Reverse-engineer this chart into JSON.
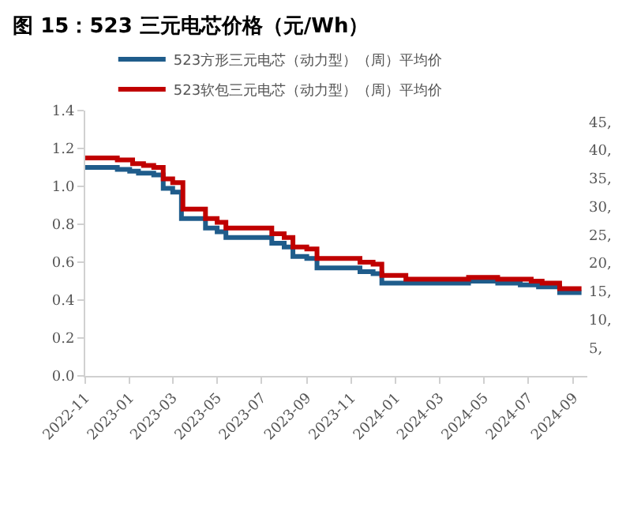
{
  "chart_data": {
    "type": "step",
    "title": "图 15：523 三元电芯价格（元/Wh）",
    "series": [
      {
        "name": "523方形三元电芯（动力型）（周）平均价",
        "color": "#1f5c8b",
        "x": [
          "2022-11-01",
          "2022-12-15",
          "2023-01-01",
          "2023-01-13",
          "2023-02-03",
          "2023-02-16",
          "2023-03-01",
          "2023-03-13",
          "2023-04-15",
          "2023-05-01",
          "2023-05-13",
          "2023-07-15",
          "2023-08-01",
          "2023-08-13",
          "2023-09-01",
          "2023-09-15",
          "2023-11-13",
          "2023-12-01",
          "2023-12-13",
          "2024-04-10",
          "2024-05-20",
          "2024-06-20",
          "2024-07-15",
          "2024-08-13",
          "2024-09-12"
        ],
        "values": [
          1.1,
          1.09,
          1.08,
          1.07,
          1.06,
          0.99,
          0.97,
          0.83,
          0.78,
          0.76,
          0.73,
          0.7,
          0.68,
          0.63,
          0.62,
          0.57,
          0.55,
          0.54,
          0.49,
          0.5,
          0.49,
          0.48,
          0.47,
          0.44,
          0.44
        ]
      },
      {
        "name": "523软包三元电芯（动力型）（周）平均价",
        "color": "#c00000",
        "x": [
          "2022-11-01",
          "2022-12-15",
          "2023-01-05",
          "2023-01-20",
          "2023-02-03",
          "2023-02-16",
          "2023-03-01",
          "2023-03-15",
          "2023-04-15",
          "2023-05-01",
          "2023-05-13",
          "2023-07-15",
          "2023-08-01",
          "2023-08-13",
          "2023-09-01",
          "2023-09-15",
          "2023-11-13",
          "2023-12-01",
          "2023-12-13",
          "2024-01-15",
          "2024-04-10",
          "2024-05-20",
          "2024-07-05",
          "2024-07-20",
          "2024-08-13",
          "2024-09-12"
        ],
        "values": [
          1.15,
          1.14,
          1.12,
          1.11,
          1.1,
          1.04,
          1.02,
          0.88,
          0.83,
          0.81,
          0.78,
          0.75,
          0.73,
          0.68,
          0.67,
          0.62,
          0.6,
          0.59,
          0.53,
          0.51,
          0.52,
          0.51,
          0.5,
          0.49,
          0.46,
          0.46
        ]
      }
    ],
    "xlim": [
      "2022-11-01",
      "2024-09-20"
    ],
    "xticks": [
      {
        "value": "2022-11-01",
        "label": "2022-11"
      },
      {
        "value": "2023-01-01",
        "label": "2023-01"
      },
      {
        "value": "2023-03-01",
        "label": "2023-03"
      },
      {
        "value": "2023-05-01",
        "label": "2023-05"
      },
      {
        "value": "2023-07-01",
        "label": "2023-07"
      },
      {
        "value": "2023-09-01",
        "label": "2023-09"
      },
      {
        "value": "2023-11-01",
        "label": "2023-11"
      },
      {
        "value": "2024-01-01",
        "label": "2024-01"
      },
      {
        "value": "2024-03-01",
        "label": "2024-03"
      },
      {
        "value": "2024-05-01",
        "label": "2024-05"
      },
      {
        "value": "2024-07-01",
        "label": "2024-07"
      },
      {
        "value": "2024-09-01",
        "label": "2024-09"
      }
    ],
    "ylim": [
      0,
      1.4
    ],
    "yticks": [
      {
        "value": 0,
        "label": "0.0"
      },
      {
        "value": 0.2,
        "label": "0.2"
      },
      {
        "value": 0.4,
        "label": "0.4"
      },
      {
        "value": 0.6,
        "label": "0.6"
      },
      {
        "value": 0.8,
        "label": "0.8"
      },
      {
        "value": 1.0,
        "label": "1.0"
      },
      {
        "value": 1.2,
        "label": "1.2"
      },
      {
        "value": 1.4,
        "label": "1.4"
      }
    ],
    "y2lim": [
      0,
      47
    ],
    "y2ticks": [
      {
        "value": 5,
        "label": "5,"
      },
      {
        "value": 10,
        "label": "10,"
      },
      {
        "value": 15,
        "label": "15,"
      },
      {
        "value": 20,
        "label": "20,"
      },
      {
        "value": 25,
        "label": "25,"
      },
      {
        "value": 30,
        "label": "30,"
      },
      {
        "value": 35,
        "label": "35,"
      },
      {
        "value": 40,
        "label": "40,"
      },
      {
        "value": 45,
        "label": "45,"
      }
    ],
    "legend": "top",
    "grid": false,
    "line_style": "solid",
    "marker": "none"
  }
}
